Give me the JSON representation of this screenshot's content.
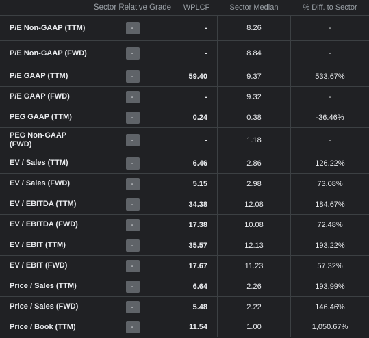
{
  "header": {
    "label": "",
    "grade": "Sector Relative Grade",
    "company": "WPLCF",
    "median": "Sector Median",
    "diff": "% Diff. to Sector"
  },
  "rows": [
    {
      "label": "P/E Non-GAAP (TTM)",
      "grade": "-",
      "company": "-",
      "median": "8.26",
      "diff": "-"
    },
    {
      "label": "P/E Non-GAAP (FWD)",
      "grade": "-",
      "company": "-",
      "median": "8.84",
      "diff": "-"
    },
    {
      "label": "P/E GAAP (TTM)",
      "grade": "-",
      "company": "59.40",
      "median": "9.37",
      "diff": "533.67%"
    },
    {
      "label": "P/E GAAP (FWD)",
      "grade": "-",
      "company": "-",
      "median": "9.32",
      "diff": "-"
    },
    {
      "label": "PEG GAAP (TTM)",
      "grade": "-",
      "company": "0.24",
      "median": "0.38",
      "diff": "-36.46%"
    },
    {
      "label": "PEG Non-GAAP (FWD)",
      "grade": "-",
      "company": "-",
      "median": "1.18",
      "diff": "-"
    },
    {
      "label": "EV / Sales (TTM)",
      "grade": "-",
      "company": "6.46",
      "median": "2.86",
      "diff": "126.22%"
    },
    {
      "label": "EV / Sales (FWD)",
      "grade": "-",
      "company": "5.15",
      "median": "2.98",
      "diff": "73.08%"
    },
    {
      "label": "EV / EBITDA (TTM)",
      "grade": "-",
      "company": "34.38",
      "median": "12.08",
      "diff": "184.67%"
    },
    {
      "label": "EV / EBITDA (FWD)",
      "grade": "-",
      "company": "17.38",
      "median": "10.08",
      "diff": "72.48%"
    },
    {
      "label": "EV / EBIT (TTM)",
      "grade": "-",
      "company": "35.57",
      "median": "12.13",
      "diff": "193.22%"
    },
    {
      "label": "EV / EBIT (FWD)",
      "grade": "-",
      "company": "17.67",
      "median": "11.23",
      "diff": "57.32%"
    },
    {
      "label": "Price / Sales (TTM)",
      "grade": "-",
      "company": "6.64",
      "median": "2.26",
      "diff": "193.99%"
    },
    {
      "label": "Price / Sales (FWD)",
      "grade": "-",
      "company": "5.48",
      "median": "2.22",
      "diff": "146.46%"
    },
    {
      "label": "Price / Book (TTM)",
      "grade": "-",
      "company": "11.54",
      "median": "1.00",
      "diff": "1,050.67%"
    }
  ],
  "colors": {
    "background": "#202124",
    "border": "#3c4043",
    "badge": "#5f6368",
    "text": "#e8eaed",
    "header_text": "#9aa0a6"
  }
}
